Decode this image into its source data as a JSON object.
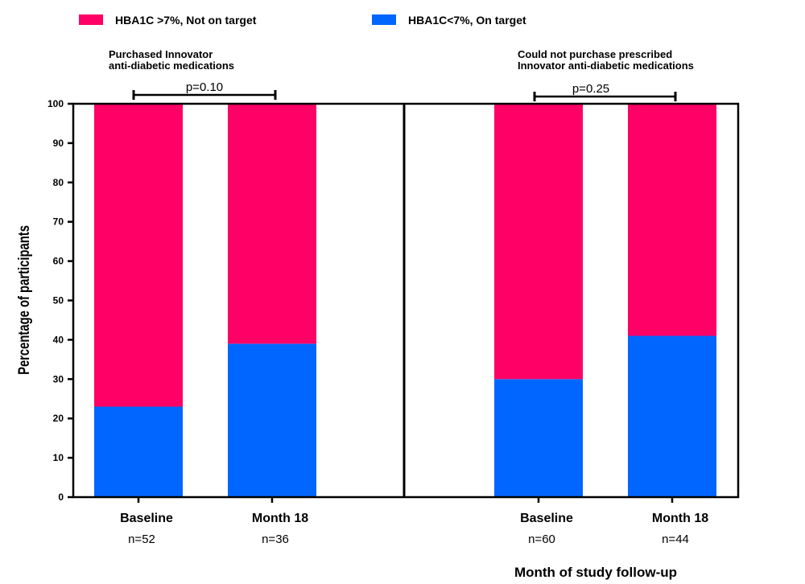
{
  "chart_data": {
    "type": "bar",
    "stacked": true,
    "legend_position": "top-left",
    "legend": [
      {
        "name": "HBA1C >7%, Not on target",
        "color": "#ff0066"
      },
      {
        "name": "HBA1C<7%, On target",
        "color": "#0066ff"
      }
    ],
    "ylabel": "Percentage of participants",
    "xlabel": "Month of study follow-up",
    "ylim": [
      0,
      100
    ],
    "yticks": [
      0,
      10,
      20,
      30,
      40,
      50,
      60,
      70,
      80,
      90,
      100
    ],
    "grid": false,
    "panels": [
      {
        "title_lines": [
          "Purchased Innovator",
          "anti-diabetic medications"
        ],
        "p_value": "p=0.10",
        "categories": [
          "Baseline",
          "Month 18"
        ],
        "n_labels": [
          "n=52",
          "n=36"
        ],
        "series": [
          {
            "name": "HBA1C<7%, On target",
            "values": [
              23,
              39
            ]
          },
          {
            "name": "HBA1C >7%, Not on target",
            "values": [
              77,
              61
            ]
          }
        ]
      },
      {
        "title_lines": [
          "Could not purchase prescribed",
          "Innovator anti-diabetic medications"
        ],
        "p_value": "p=0.25",
        "categories": [
          "Baseline",
          "Month 18"
        ],
        "n_labels": [
          "n=60",
          "n=44"
        ],
        "series": [
          {
            "name": "HBA1C<7%, On target",
            "values": [
              30,
              41
            ]
          },
          {
            "name": "HBA1C >7%, Not on target",
            "values": [
              70,
              59
            ]
          }
        ]
      }
    ]
  }
}
